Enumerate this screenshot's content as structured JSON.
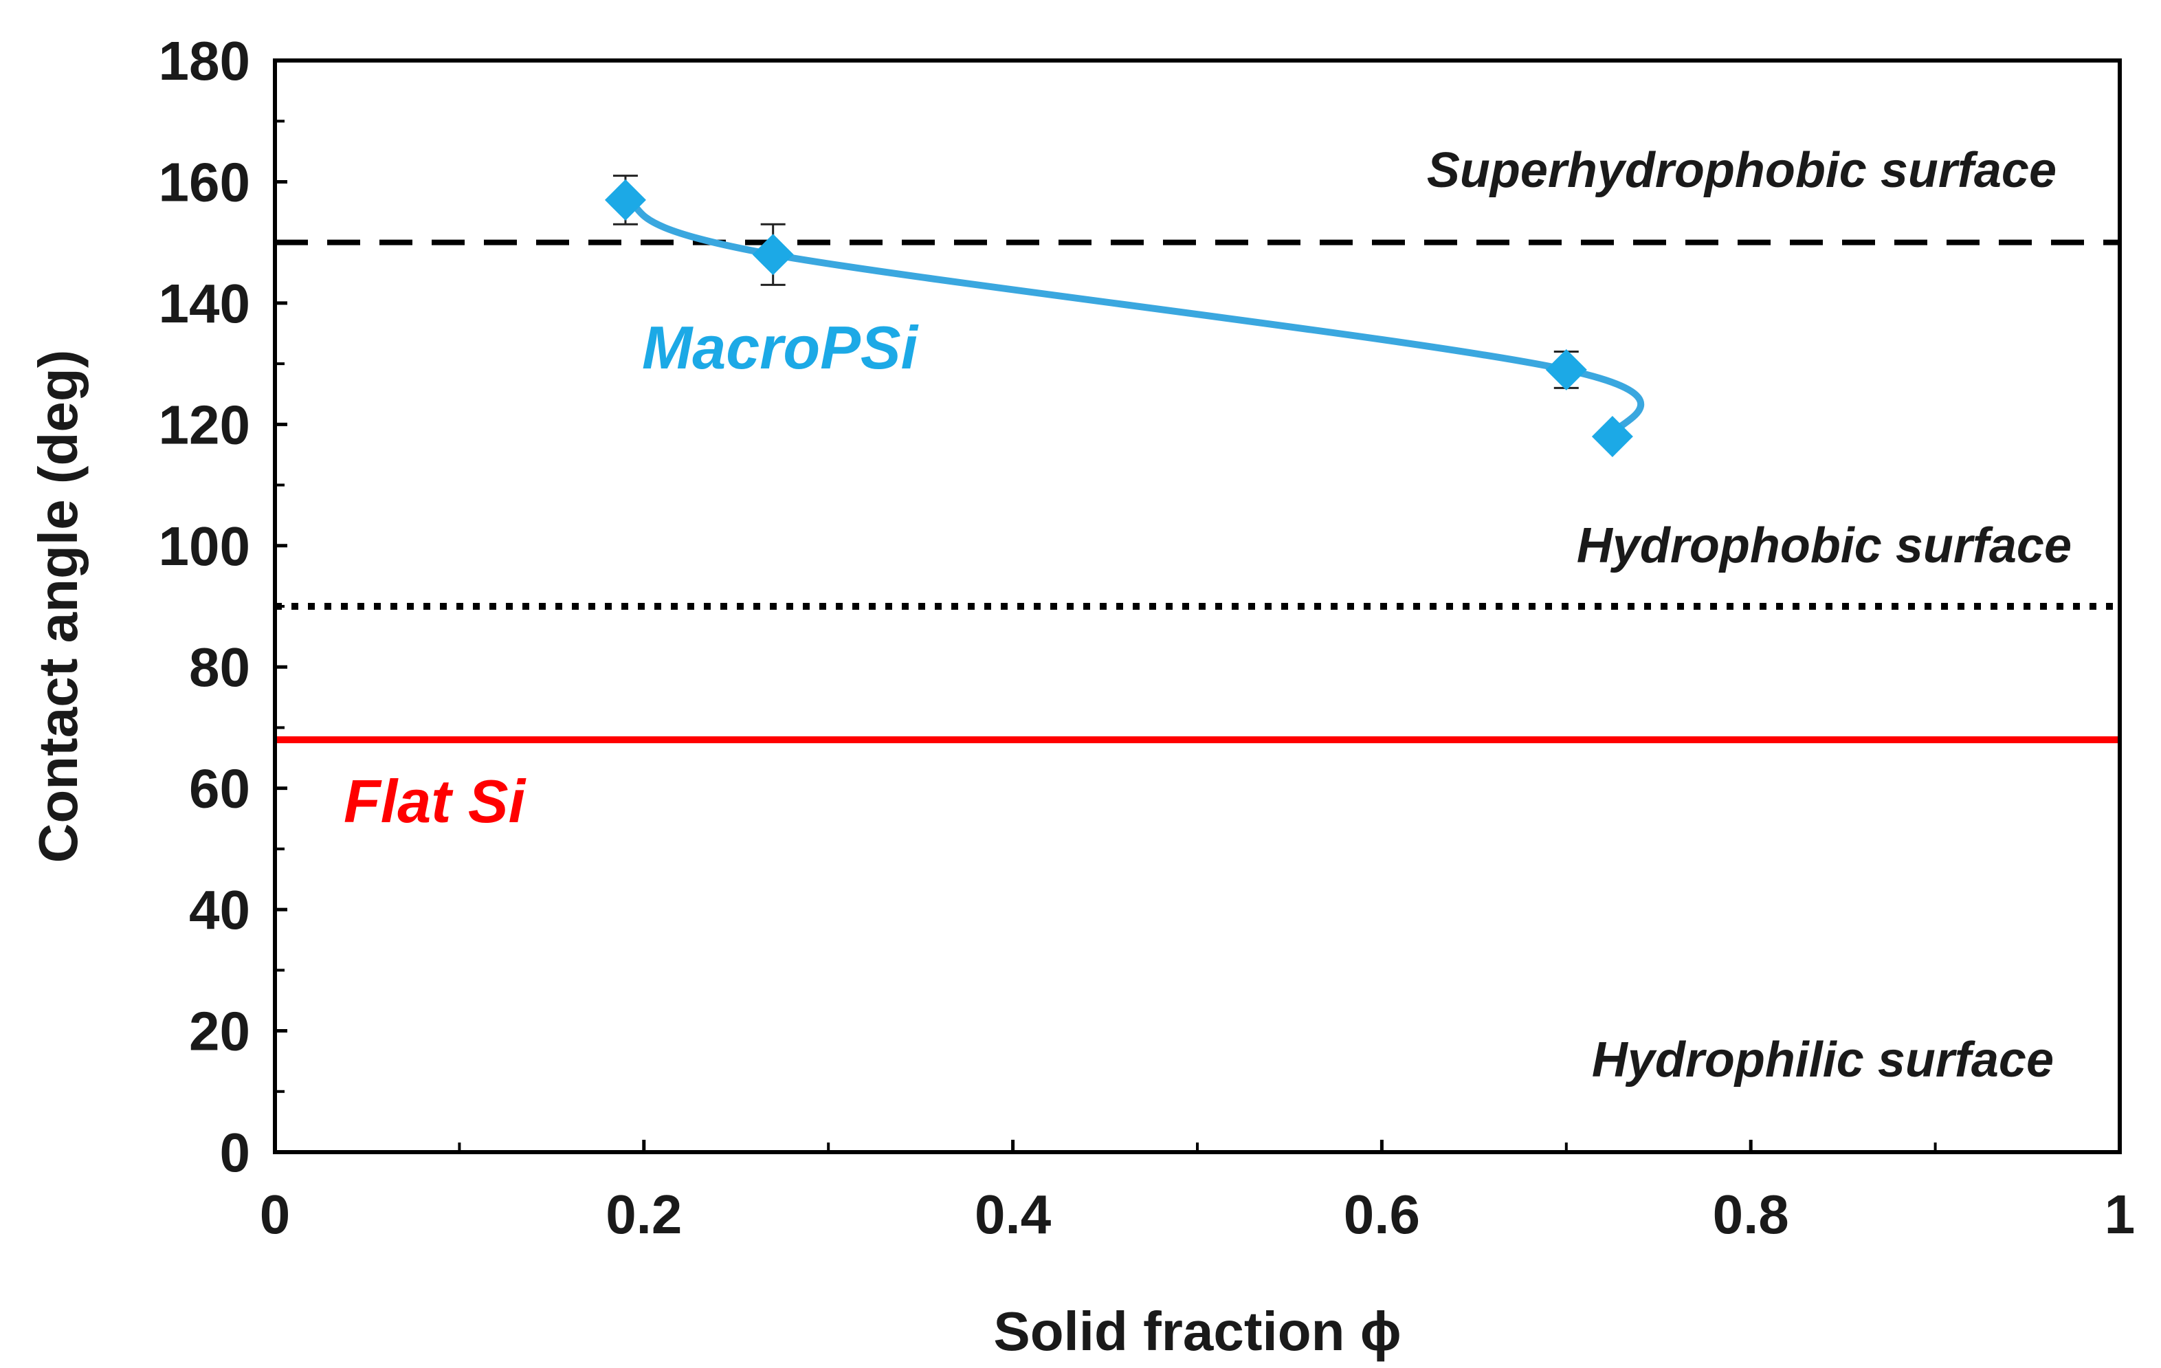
{
  "chart_data": {
    "type": "scatter",
    "title": "",
    "xlabel": "Solid fraction ϕ",
    "ylabel": "Contact angle (deg)",
    "xlim": [
      0,
      1
    ],
    "ylim": [
      0,
      180
    ],
    "x_ticks": [
      "0",
      "0.2",
      "0.4",
      "0.6",
      "0.8",
      "1"
    ],
    "y_ticks": [
      "0",
      "20",
      "40",
      "60",
      "80",
      "100",
      "120",
      "140",
      "160",
      "180"
    ],
    "grid": false,
    "series": [
      {
        "name": "MacroPSi",
        "color": "#1ca9e6",
        "line_color": "#3aa7df",
        "marker": "diamond",
        "x": [
          0.19,
          0.27,
          0.7,
          0.725
        ],
        "y": [
          157,
          148,
          129,
          118
        ],
        "error": [
          4,
          5,
          3,
          0
        ]
      }
    ],
    "reference_lines": [
      {
        "name": "superhydrophobic-threshold",
        "y": 150,
        "style": "dashed",
        "color": "#000000"
      },
      {
        "name": "hydrophobic-threshold",
        "y": 90,
        "style": "dotted",
        "color": "#000000"
      },
      {
        "name": "flat-si",
        "y": 68,
        "style": "solid",
        "color": "#ff0000"
      }
    ],
    "labels": {
      "macropsi": "MacroPSi",
      "flat_si": "Flat  Si",
      "superhydrophobic": "Superhydrophobic surface",
      "hydrophobic": "Hydrophobic surface",
      "hydrophilic": "Hydrophilic surface"
    },
    "colors": {
      "macropsi": "#1ca9e6",
      "flat_si": "#ff0000"
    }
  }
}
